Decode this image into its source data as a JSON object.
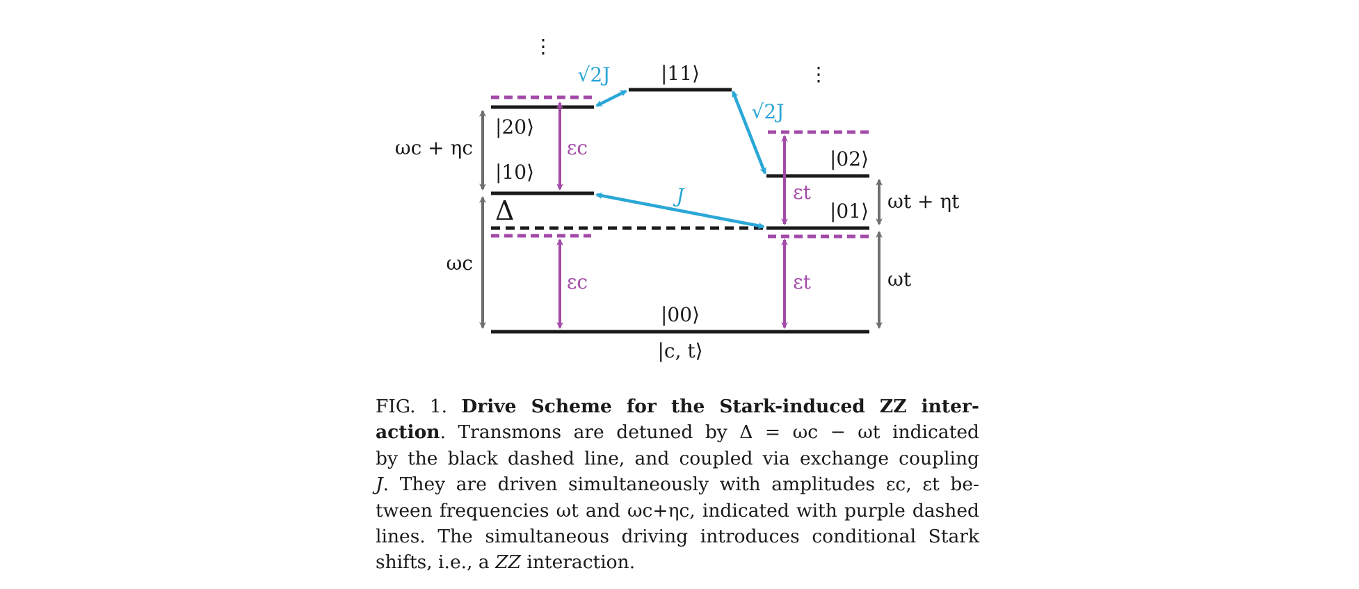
{
  "figure": {
    "state_labels": {
      "s20": "|20⟩",
      "s10": "|10⟩",
      "s11": "|11⟩",
      "s02": "|02⟩",
      "s01": "|01⟩",
      "s00": "|00⟩",
      "basis": "|c, t⟩"
    },
    "coupling_labels": {
      "sqrt2J_left": "√2J",
      "sqrt2J_right": "√2J",
      "J": "J"
    },
    "drive_labels": {
      "eps_c_upper": "εc",
      "eps_c_lower": "εc",
      "eps_t_upper": "εt",
      "eps_t_lower": "εt"
    },
    "energy_labels": {
      "wc_plus_eta_c": "ωc + ηc",
      "wc": "ωc",
      "wt_plus_eta_t": "ωt + ηt",
      "wt": "ωt",
      "delta": "Δ"
    },
    "ellipsis": "⋮",
    "colors": {
      "level": "#1a1a1a",
      "coupling": "#2aa7d6",
      "drive": "#a24aa8",
      "energy_arrow": "#6e6e6e"
    }
  },
  "caption": {
    "fig_label": "FIG. 1.",
    "title": "Drive Scheme for the Stark-induced ZZ interaction",
    "line1_a": "FIG. 1. ",
    "line1_b": "Drive Scheme for the Stark-induced ZZ inter-",
    "line2_a": "action",
    "line2_b": ". Transmons are detuned by Δ = ωc − ωt indicated",
    "line3": "by the black dashed line, and coupled via exchange coupling",
    "line4_a": "J",
    "line4_b": ". They are driven simultaneously with amplitudes εc, εt be-",
    "line5": "tween frequencies ωt and ωc+ηc, indicated with purple dashed",
    "line6": "lines. The simultaneous driving introduces conditional Stark",
    "line7_a": "shifts, i.e., a ",
    "line7_b": "ZZ",
    "line7_c": " interaction."
  }
}
